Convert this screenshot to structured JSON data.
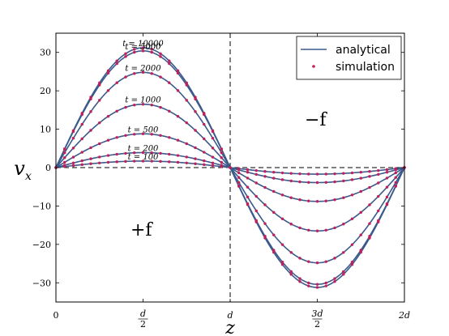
{
  "chart_data": {
    "type": "line",
    "xlabel": "z",
    "ylabel": "v_x",
    "xlim": [
      0,
      2
    ],
    "ylim": [
      -35,
      35
    ],
    "x_ticks": [
      {
        "value": 0,
        "label": "0"
      },
      {
        "value": 0.5,
        "label": "d/2"
      },
      {
        "value": 1,
        "label": "d"
      },
      {
        "value": 1.5,
        "label": "3d/2"
      },
      {
        "value": 2,
        "label": "2d"
      }
    ],
    "y_ticks": [
      -30,
      -20,
      -10,
      0,
      10,
      20,
      30
    ],
    "legend": {
      "position": "top-right",
      "entries": [
        "analytical",
        "simulation"
      ]
    },
    "annotations": {
      "left_region": "+f",
      "right_region": "−f"
    },
    "series_colors": {
      "analytical": "#3a5a8c",
      "simulation": "#c21f5b"
    },
    "curves": [
      {
        "label": "t = 100",
        "amplitude": 1.7
      },
      {
        "label": "t = 200",
        "amplitude": 3.9
      },
      {
        "label": "t = 500",
        "amplitude": 8.8
      },
      {
        "label": "t = 1000",
        "amplitude": 16.5
      },
      {
        "label": "t = 2000",
        "amplitude": 24.8
      },
      {
        "label": "t = 5000",
        "amplitude": 30.4
      },
      {
        "label": "t = 10000",
        "amplitude": 31.2
      }
    ]
  }
}
